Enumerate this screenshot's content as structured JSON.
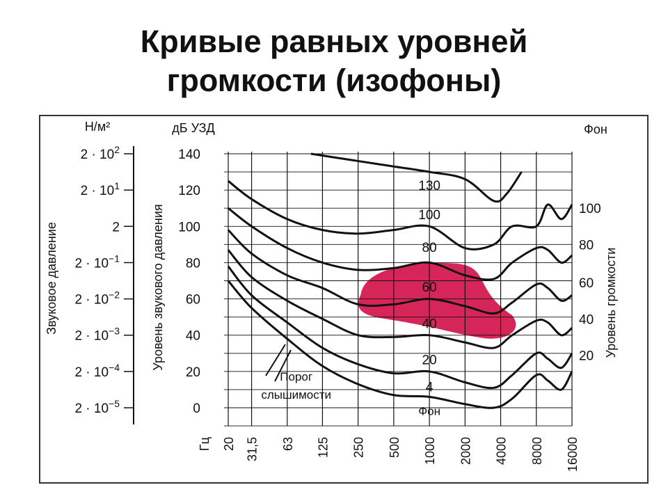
{
  "title": {
    "line1": "Кривые равных уровней",
    "line2": "громкости (изофоны)"
  },
  "colors": {
    "highlight": "#d3124a",
    "curve": "#111111",
    "grid": "#111111"
  },
  "chart_data": {
    "type": "line",
    "pressure_axis": {
      "unit": "Н/м²",
      "label": "Звуковое давление",
      "ticks": [
        {
          "base": "2 · 10",
          "exp": "2",
          "db": 140
        },
        {
          "base": "2 · 10",
          "exp": "1",
          "db": 120
        },
        {
          "base": "2",
          "exp": "",
          "db": 100
        },
        {
          "base": "2 · 10",
          "exp": "−1",
          "db": 80
        },
        {
          "base": "2 · 10",
          "exp": "−2",
          "db": 60
        },
        {
          "base": "2 · 10",
          "exp": "−3",
          "db": 40
        },
        {
          "base": "2 · 10",
          "exp": "−4",
          "db": 20
        },
        {
          "base": "2 · 10",
          "exp": "−5",
          "db": 0
        }
      ]
    },
    "y_axis": {
      "unit": "дБ УЗД",
      "label": "Уровень звукового давления",
      "ticks": [
        0,
        20,
        40,
        60,
        80,
        100,
        120,
        140
      ],
      "ylim": [
        -10,
        145
      ]
    },
    "x_axis": {
      "unit": "Гц",
      "scale": "log",
      "ticks": [
        "20",
        "31,5",
        "63",
        "125",
        "250",
        "500",
        "1000",
        "2000",
        "4000",
        "8000",
        "16000"
      ],
      "tick_values": [
        20,
        31.5,
        63,
        125,
        250,
        500,
        1000,
        2000,
        4000,
        8000,
        16000
      ]
    },
    "right_axis": {
      "unit": "Фон",
      "label": "Уровень громкости",
      "ticks": [
        {
          "label": "100",
          "db": 110
        },
        {
          "label": "80",
          "db": 90
        },
        {
          "label": "60",
          "db": 69
        },
        {
          "label": "40",
          "db": 49
        },
        {
          "label": "20",
          "db": 29
        }
      ]
    },
    "series": [
      {
        "name": "130",
        "x": [
          100,
          250,
          500,
          1000,
          2000,
          3500,
          4500,
          6000
        ],
        "y": [
          140,
          136,
          133,
          130,
          126,
          114,
          118,
          130
        ]
      },
      {
        "name": "100",
        "x": [
          20,
          31.5,
          63,
          125,
          250,
          500,
          1000,
          2000,
          3500,
          5000,
          8000,
          10000,
          13000,
          16000
        ],
        "y": [
          125,
          115,
          104,
          98,
          96,
          98,
          100,
          88,
          90,
          100,
          100,
          112,
          104,
          112
        ]
      },
      {
        "name": "80",
        "x": [
          20,
          31.5,
          63,
          125,
          250,
          500,
          1000,
          2000,
          3500,
          5000,
          8000,
          10000,
          13000,
          16000
        ],
        "y": [
          110,
          100,
          88,
          80,
          76,
          77,
          80,
          73,
          71,
          80,
          88,
          87,
          80,
          84
        ]
      },
      {
        "name": "60",
        "x": [
          20,
          31.5,
          63,
          125,
          250,
          500,
          1000,
          2000,
          3500,
          5000,
          8000,
          10000,
          13000,
          16000
        ],
        "y": [
          98,
          85,
          73,
          66,
          57,
          57,
          60,
          56,
          52,
          58,
          68,
          66,
          59,
          62
        ]
      },
      {
        "name": "40",
        "x": [
          20,
          31.5,
          63,
          125,
          250,
          500,
          1000,
          2000,
          3500,
          5000,
          8000,
          10000,
          13000,
          16000
        ],
        "y": [
          87,
          72,
          59,
          49,
          40,
          39,
          40,
          36,
          33,
          40,
          48,
          47,
          40,
          44
        ]
      },
      {
        "name": "20",
        "x": [
          20,
          31.5,
          63,
          125,
          250,
          500,
          1000,
          2000,
          3500,
          5000,
          8000,
          10000,
          13000,
          16000
        ],
        "y": [
          78,
          62,
          47,
          33,
          24,
          19,
          20,
          14,
          11,
          18,
          30,
          27,
          22,
          30
        ]
      },
      {
        "name": "4",
        "x": [
          20,
          31.5,
          63,
          125,
          250,
          500,
          1000,
          2000,
          3500,
          5000,
          8000,
          10000,
          13000,
          16000
        ],
        "y": [
          70,
          55,
          38,
          23,
          13,
          7,
          6,
          2,
          0,
          5,
          18,
          15,
          10,
          20
        ]
      }
    ],
    "curve_labels": [
      {
        "text": "130",
        "x": 1000,
        "y": 120
      },
      {
        "text": "100",
        "x": 1000,
        "y": 104
      },
      {
        "text": "80",
        "x": 1000,
        "y": 86
      },
      {
        "text": "60",
        "x": 1000,
        "y": 64
      },
      {
        "text": "40",
        "x": 1000,
        "y": 44
      },
      {
        "text": "20",
        "x": 1000,
        "y": 24
      },
      {
        "text": "4",
        "x": 1000,
        "y": 9
      }
    ],
    "annotations": [
      {
        "text": "Порог",
        "x": 75,
        "y": 15
      },
      {
        "text": "слышимости",
        "x": 75,
        "y": 5
      },
      {
        "text": "Фон",
        "x": 1000,
        "y": -4
      }
    ],
    "highlight_region": {
      "x_from": 250,
      "x_to": 4000,
      "y_center": 58,
      "description_color": "#d3124a"
    }
  }
}
